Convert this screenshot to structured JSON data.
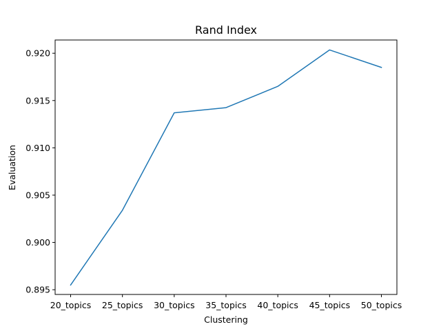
{
  "chart_data": {
    "type": "line",
    "title": "Rand Index",
    "xlabel": "Clustering",
    "ylabel": "Evaluation",
    "categories": [
      "20_topics",
      "25_topics",
      "30_topics",
      "35_topics",
      "40_topics",
      "45_topics",
      "50_topics"
    ],
    "series": [
      {
        "values": [
          0.8955,
          0.9034,
          0.9137,
          0.91425,
          0.9165,
          0.92035,
          0.9185
        ]
      }
    ],
    "yticks": [
      "0.895",
      "0.900",
      "0.905",
      "0.910",
      "0.915",
      "0.920"
    ],
    "ytick_values": [
      0.895,
      0.9,
      0.905,
      0.91,
      0.915,
      0.92
    ],
    "ylim": [
      0.8945,
      0.9214
    ],
    "grid": false,
    "colors": {
      "line": "#1f77b4"
    }
  }
}
